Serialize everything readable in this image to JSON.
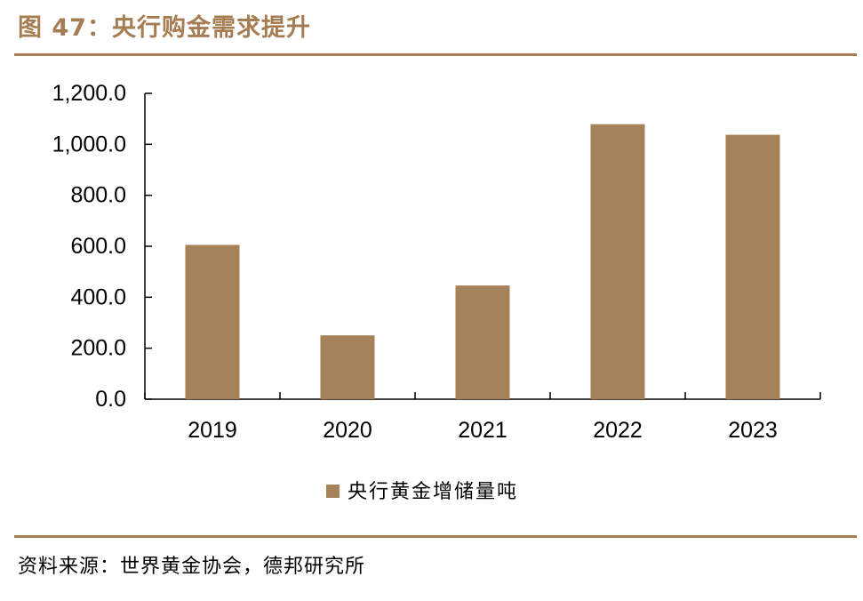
{
  "figure": {
    "title": "图 47：央行购金需求提升",
    "source": "资料来源：世界黄金协会，德邦研究所"
  },
  "chart_data": {
    "type": "bar",
    "title": "",
    "categories": [
      "2019",
      "2020",
      "2021",
      "2022",
      "2023"
    ],
    "series": [
      {
        "name": "央行黄金增储量吨",
        "color": "#a6825b",
        "values": [
          605.4,
          250.4,
          446.1,
          1079.0,
          1037.4
        ]
      }
    ],
    "xlabel": "",
    "ylabel": "",
    "ylim": [
      0,
      1200
    ],
    "y_ticks": [
      0,
      200,
      400,
      600,
      800,
      1000,
      1200
    ],
    "y_tick_labels": [
      "0.0",
      "200.0",
      "400.0",
      "600.0",
      "800.0",
      "1,000.0",
      "1,200.0"
    ],
    "grid": false,
    "legend_position": "bottom-center"
  }
}
